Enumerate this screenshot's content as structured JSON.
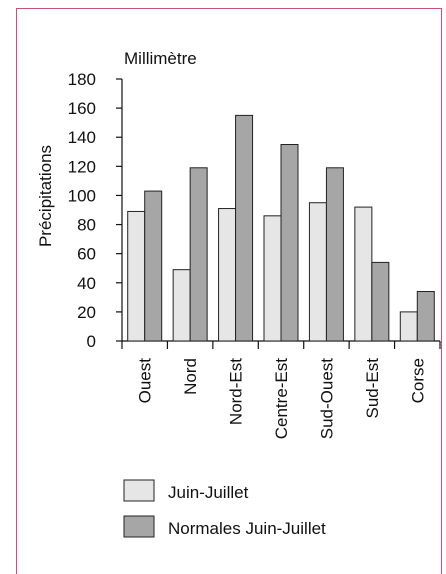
{
  "chart_data": {
    "type": "bar",
    "title": "",
    "unit_label": "Millimètre",
    "ylabel": "Précipitations",
    "xlabel": "",
    "ylim": [
      0,
      180
    ],
    "yticks": [
      0,
      20,
      40,
      60,
      80,
      100,
      120,
      140,
      160,
      180
    ],
    "grid": false,
    "legend_position": "bottom",
    "categories": [
      "Ouest",
      "Nord",
      "Nord-Est",
      "Centre-Est",
      "Sud-Ouest",
      "Sud-Est",
      "Corse"
    ],
    "series": [
      {
        "name": "Juin-Juillet",
        "color": "#e6e6e6",
        "values": [
          89,
          49,
          91,
          86,
          95,
          92,
          20
        ]
      },
      {
        "name": "Normales Juin-Juillet",
        "color": "#a6a6a6",
        "values": [
          103,
          119,
          155,
          135,
          119,
          54,
          34
        ]
      }
    ]
  }
}
